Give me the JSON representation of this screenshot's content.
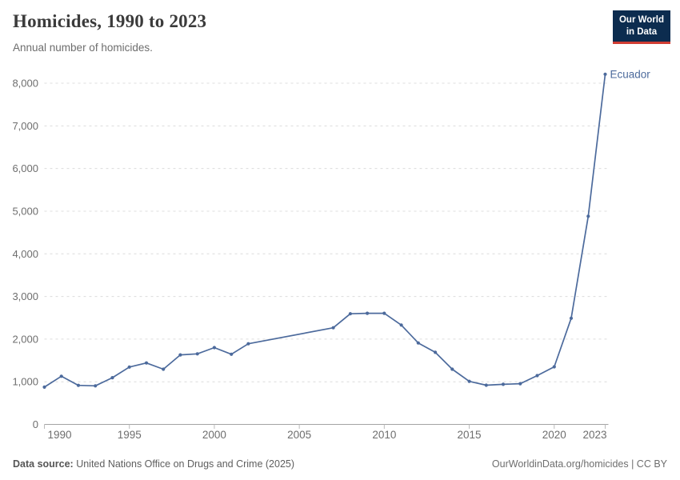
{
  "header": {
    "title": "Homicides, 1990 to 2023",
    "subtitle": "Annual number of homicides."
  },
  "logo": {
    "line1": "Our World",
    "line2": "in Data"
  },
  "footer": {
    "source_label": "Data source:",
    "source_text": " United Nations Office on Drugs and Crime (2025)",
    "credit": "OurWorldinData.org/homicides | CC BY"
  },
  "colors": {
    "line": "#4c6a9c",
    "entity_label": "#4c6a9c",
    "grid": "#dcdcdc",
    "axis": "#a3a3a3",
    "tick": "#bbbbbb",
    "axis_text": "#6e6e6e",
    "logo_bg": "#0c2c4f",
    "logo_red": "#d13d33"
  },
  "chart_data": {
    "type": "line",
    "title": "Homicides, 1990 to 2023",
    "subtitle": "Annual number of homicides.",
    "xlabel": "",
    "ylabel": "",
    "xlim": [
      1990,
      2023
    ],
    "ylim": [
      0,
      8000
    ],
    "x_ticks": [
      1990,
      1995,
      2000,
      2005,
      2010,
      2015,
      2020,
      2023
    ],
    "y_ticks": [
      0,
      1000,
      2000,
      3000,
      4000,
      5000,
      6000,
      7000,
      8000
    ],
    "grid": "horizontal-dashed",
    "legend_position": "line-end-label",
    "missing_years": [
      2003,
      2004,
      2005,
      2006
    ],
    "series": [
      {
        "name": "Ecuador",
        "color": "#4c6a9c",
        "points": [
          [
            1990,
            875
          ],
          [
            1991,
            1130
          ],
          [
            1992,
            915
          ],
          [
            1993,
            905
          ],
          [
            1994,
            1095
          ],
          [
            1995,
            1345
          ],
          [
            1996,
            1440
          ],
          [
            1997,
            1295
          ],
          [
            1998,
            1630
          ],
          [
            1999,
            1655
          ],
          [
            2000,
            1800
          ],
          [
            2001,
            1645
          ],
          [
            2002,
            1890
          ],
          [
            2007,
            2265
          ],
          [
            2008,
            2595
          ],
          [
            2009,
            2605
          ],
          [
            2010,
            2605
          ],
          [
            2011,
            2330
          ],
          [
            2012,
            1910
          ],
          [
            2013,
            1690
          ],
          [
            2014,
            1295
          ],
          [
            2015,
            1010
          ],
          [
            2016,
            920
          ],
          [
            2017,
            940
          ],
          [
            2018,
            955
          ],
          [
            2019,
            1145
          ],
          [
            2020,
            1350
          ],
          [
            2021,
            2490
          ],
          [
            2022,
            4880
          ],
          [
            2023,
            8210
          ]
        ]
      }
    ]
  }
}
